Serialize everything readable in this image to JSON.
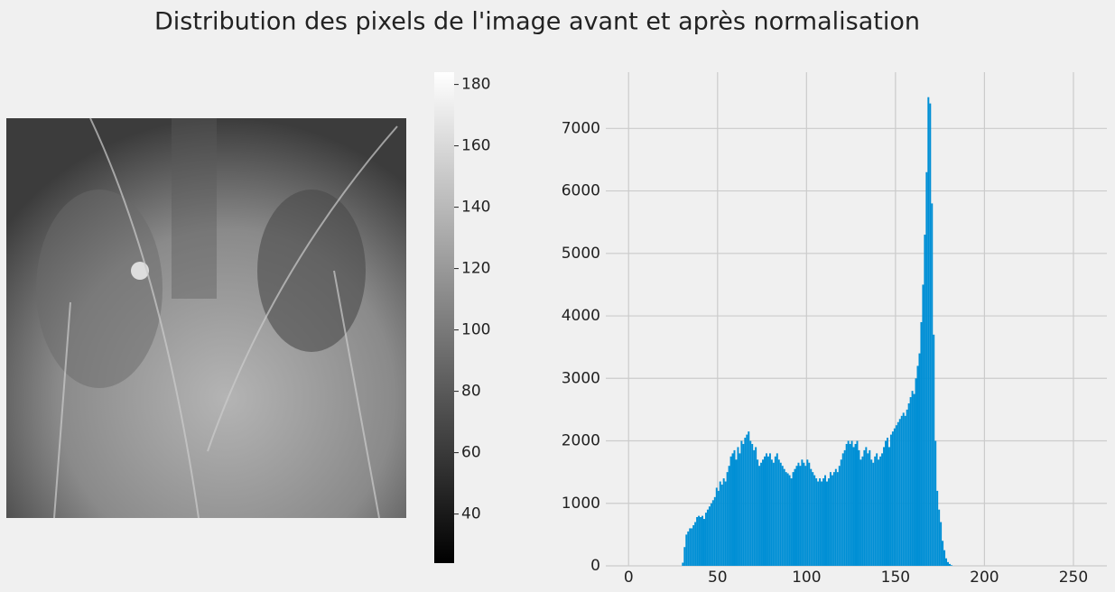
{
  "title": "Distribution des pixels de l'image avant et après normalisation",
  "chart_data": [
    {
      "type": "image",
      "colorbar": {
        "lim": [
          24,
          184
        ],
        "ticks": [
          40,
          60,
          80,
          100,
          120,
          140,
          160,
          180
        ]
      }
    },
    {
      "type": "histogram",
      "color": "#008fd5",
      "grid": true,
      "xlim": [
        -12.8,
        268.8
      ],
      "xticks": [
        0,
        50,
        100,
        150,
        200,
        250
      ],
      "ylim": [
        0,
        7900
      ],
      "yticks": [
        0,
        1000,
        2000,
        3000,
        4000,
        5000,
        6000,
        7000
      ],
      "bins": [
        30,
        31,
        32,
        33,
        34,
        35,
        36,
        37,
        38,
        39,
        40,
        41,
        42,
        43,
        44,
        45,
        46,
        47,
        48,
        49,
        50,
        51,
        52,
        53,
        54,
        55,
        56,
        57,
        58,
        59,
        60,
        61,
        62,
        63,
        64,
        65,
        66,
        67,
        68,
        69,
        70,
        71,
        72,
        73,
        74,
        75,
        76,
        77,
        78,
        79,
        80,
        81,
        82,
        83,
        84,
        85,
        86,
        87,
        88,
        89,
        90,
        91,
        92,
        93,
        94,
        95,
        96,
        97,
        98,
        99,
        100,
        101,
        102,
        103,
        104,
        105,
        106,
        107,
        108,
        109,
        110,
        111,
        112,
        113,
        114,
        115,
        116,
        117,
        118,
        119,
        120,
        121,
        122,
        123,
        124,
        125,
        126,
        127,
        128,
        129,
        130,
        131,
        132,
        133,
        134,
        135,
        136,
        137,
        138,
        139,
        140,
        141,
        142,
        143,
        144,
        145,
        146,
        147,
        148,
        149,
        150,
        151,
        152,
        153,
        154,
        155,
        156,
        157,
        158,
        159,
        160,
        161,
        162,
        163,
        164,
        165,
        166,
        167,
        168,
        169,
        170,
        171,
        172,
        173,
        174,
        175,
        176,
        177,
        178,
        179,
        180,
        181,
        182
      ],
      "values": [
        50,
        300,
        500,
        550,
        600,
        600,
        650,
        700,
        780,
        800,
        780,
        800,
        750,
        850,
        900,
        950,
        1000,
        1050,
        1100,
        1250,
        1200,
        1350,
        1300,
        1400,
        1350,
        1500,
        1600,
        1750,
        1800,
        1850,
        1700,
        1900,
        1800,
        2000,
        1950,
        2050,
        2100,
        2150,
        2000,
        1950,
        1850,
        1900,
        1700,
        1600,
        1650,
        1700,
        1750,
        1800,
        1750,
        1800,
        1700,
        1650,
        1750,
        1800,
        1700,
        1650,
        1600,
        1550,
        1500,
        1480,
        1450,
        1400,
        1500,
        1550,
        1600,
        1650,
        1600,
        1700,
        1650,
        1600,
        1700,
        1650,
        1550,
        1500,
        1450,
        1400,
        1350,
        1400,
        1350,
        1400,
        1450,
        1350,
        1400,
        1500,
        1450,
        1500,
        1550,
        1500,
        1600,
        1700,
        1800,
        1850,
        1950,
        2000,
        1950,
        2000,
        1900,
        1950,
        2000,
        1850,
        1700,
        1750,
        1850,
        1900,
        1800,
        1850,
        1700,
        1650,
        1750,
        1800,
        1700,
        1750,
        1800,
        1900,
        2000,
        2050,
        1900,
        2100,
        2150,
        2200,
        2250,
        2300,
        2350,
        2400,
        2450,
        2400,
        2500,
        2600,
        2700,
        2800,
        2750,
        3000,
        3200,
        3400,
        3900,
        4500,
        5300,
        6300,
        7500,
        7400,
        5800,
        3700,
        2000,
        1200,
        900,
        700,
        400,
        250,
        120,
        60,
        30,
        10
      ]
    }
  ]
}
